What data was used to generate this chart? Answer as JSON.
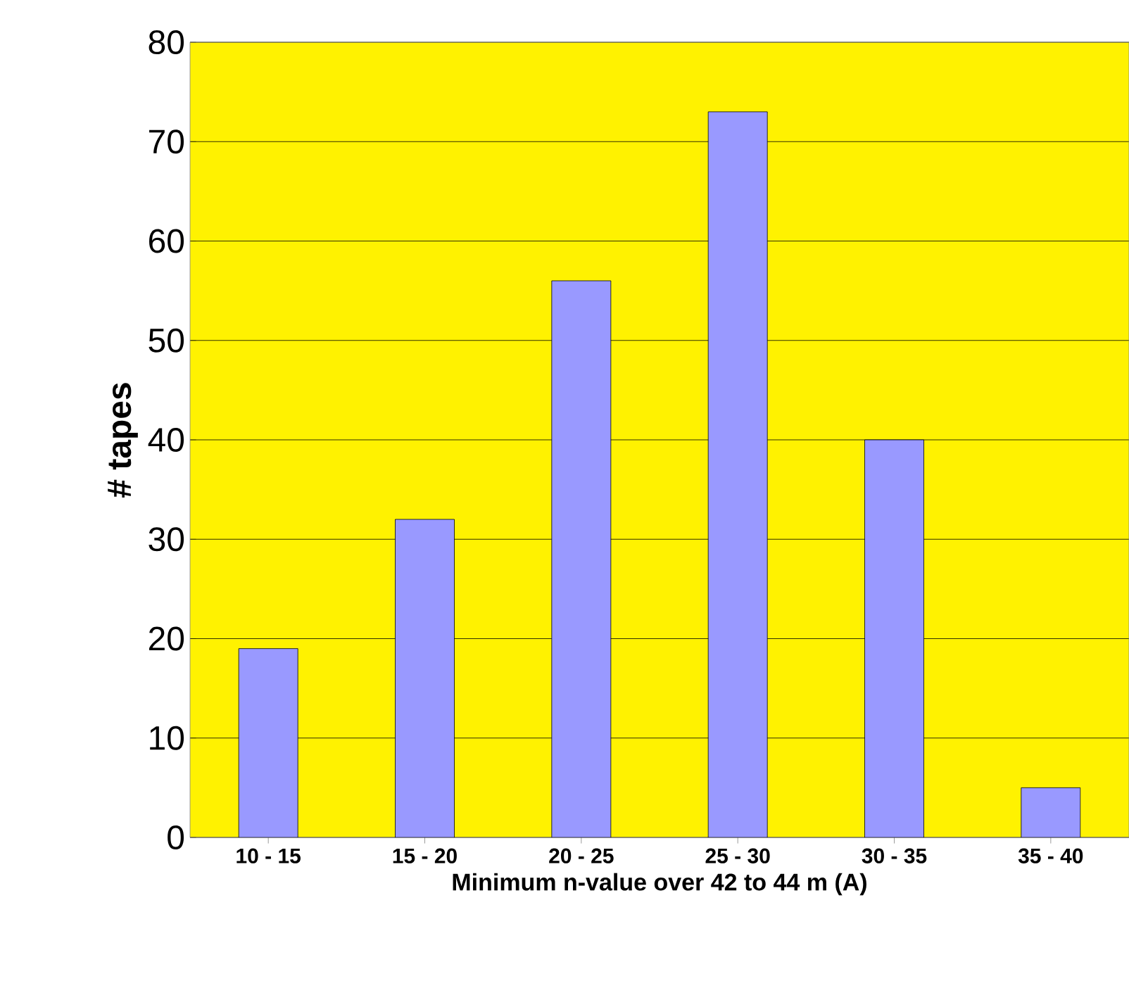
{
  "chart_data": {
    "type": "bar",
    "xlabel": "Minimum n-value over 42 to 44 m (A)",
    "ylabel": "# tapes",
    "categories": [
      "10 - 15",
      "15 - 20",
      "20 - 25",
      "25 - 30",
      "30 - 35",
      "35 - 40"
    ],
    "values": [
      19,
      32,
      56,
      73,
      40,
      5
    ],
    "color": "#9999ff",
    "ylim": [
      0,
      80
    ],
    "yticks": [
      0,
      10,
      20,
      30,
      40,
      50,
      60,
      70,
      80
    ],
    "grid": "y"
  }
}
